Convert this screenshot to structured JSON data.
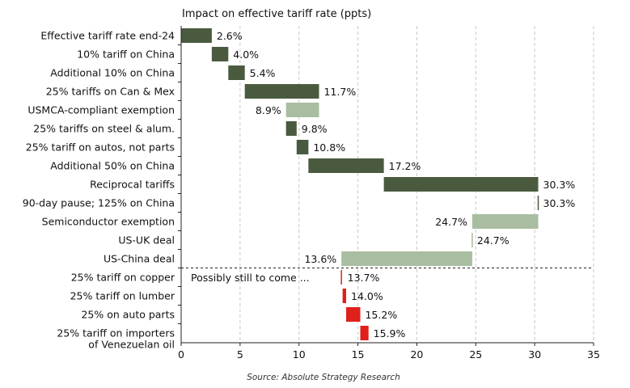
{
  "chart_data": {
    "type": "waterfall",
    "title": "Impact on effective tariff rate (ppts)",
    "source": "Source: Absolute Strategy Research",
    "annotation": "Possibly still to come ...",
    "xlim": [
      0,
      35
    ],
    "xticks": [
      "0",
      "5",
      "10",
      "15",
      "20",
      "25",
      "30",
      "35"
    ],
    "xtick_values": [
      0,
      5,
      10,
      15,
      20,
      25,
      30,
      35
    ],
    "gridlines": "vertical-dashed",
    "colors": {
      "increase": "#4a5a3f",
      "decrease": "#a9bda0",
      "future": "#e0201b"
    },
    "items": [
      {
        "label": "Effective tariff rate end-24",
        "start": 0,
        "end": 2.6,
        "value_label": "2.6%",
        "kind": "increase"
      },
      {
        "label": "10% tariff on China",
        "start": 2.6,
        "end": 4.0,
        "value_label": "4.0%",
        "kind": "increase"
      },
      {
        "label": "Additional 10% on China",
        "start": 4.0,
        "end": 5.4,
        "value_label": "5.4%",
        "kind": "increase"
      },
      {
        "label": "25% tariffs on Can & Mex",
        "start": 5.4,
        "end": 11.7,
        "value_label": "11.7%",
        "kind": "increase"
      },
      {
        "label": "USMCA-compliant exemption",
        "start": 11.7,
        "end": 8.9,
        "value_label": "8.9%",
        "kind": "decrease"
      },
      {
        "label": "25% tariffs on steel & alum.",
        "start": 8.9,
        "end": 9.8,
        "value_label": "9.8%",
        "kind": "increase"
      },
      {
        "label": "25% tariff on autos, not parts",
        "start": 9.8,
        "end": 10.8,
        "value_label": "10.8%",
        "kind": "increase"
      },
      {
        "label": "Additional 50% on China",
        "start": 10.8,
        "end": 17.2,
        "value_label": "17.2%",
        "kind": "increase"
      },
      {
        "label": "Reciprocal tariffs",
        "start": 17.2,
        "end": 30.3,
        "value_label": "30.3%",
        "kind": "increase"
      },
      {
        "label": "90-day pause; 125% on China",
        "start": 30.3,
        "end": 30.3,
        "value_label": "30.3%",
        "kind": "increase"
      },
      {
        "label": "Semiconductor exemption",
        "start": 30.3,
        "end": 24.7,
        "value_label": "24.7%",
        "kind": "decrease"
      },
      {
        "label": "US-UK deal",
        "start": 24.7,
        "end": 24.7,
        "value_label": "24.7%",
        "kind": "decrease"
      },
      {
        "label": "US-China deal",
        "start": 24.7,
        "end": 13.6,
        "value_label": "13.6%",
        "kind": "decrease"
      },
      {
        "label": "25% tariff on copper",
        "start": 13.6,
        "end": 13.7,
        "value_label": "13.7%",
        "kind": "future"
      },
      {
        "label": "25% tariff on lumber",
        "start": 13.7,
        "end": 14.0,
        "value_label": "14.0%",
        "kind": "future"
      },
      {
        "label": "25% on auto parts",
        "start": 14.0,
        "end": 15.2,
        "value_label": "15.2%",
        "kind": "future"
      },
      {
        "label": "25% tariff on importers of Venezuelan oil",
        "label_lines": [
          "25% tariff on importers",
          "of Venezuelan oil"
        ],
        "start": 15.2,
        "end": 15.9,
        "value_label": "15.9%",
        "kind": "future"
      }
    ]
  }
}
